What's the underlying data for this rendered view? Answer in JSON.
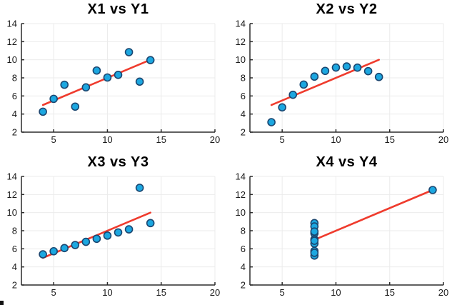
{
  "figure": {
    "background": "#ffffff",
    "rows": 2,
    "cols": 2
  },
  "style": {
    "marker_fill": "#1CA7E0",
    "marker_edge": "#1A4670",
    "marker_radius": 5,
    "marker_edge_width": 1.6,
    "line_color": "#EF3B2D",
    "line_width": 2.6,
    "grid_color": "#EBEBEB",
    "axis_color": "#2B2B2B",
    "axis_width": 1.5,
    "tick_length": 4,
    "tick_label_color": "#1a1a1a",
    "title_color": "#000000"
  },
  "chart_data": [
    {
      "type": "scatter",
      "title": "X1 vs Y1",
      "x": [
        10,
        8,
        13,
        9,
        11,
        14,
        6,
        4,
        12,
        7,
        5
      ],
      "y": [
        8.04,
        6.95,
        7.58,
        8.81,
        8.33,
        9.96,
        7.24,
        4.26,
        10.84,
        4.82,
        5.68
      ],
      "xlim": [
        2,
        20
      ],
      "ylim": [
        2,
        14
      ],
      "xticks": [
        5,
        10,
        15,
        20
      ],
      "yticks": [
        2,
        4,
        6,
        8,
        10,
        12,
        14
      ],
      "grid": true,
      "legend": null,
      "fit_line": {
        "x1": 4,
        "y1": 5,
        "x2": 14,
        "y2": 10
      }
    },
    {
      "type": "scatter",
      "title": "X2 vs Y2",
      "x": [
        10,
        8,
        13,
        9,
        11,
        14,
        6,
        4,
        12,
        7,
        5
      ],
      "y": [
        9.14,
        8.14,
        8.74,
        8.77,
        9.26,
        8.1,
        6.13,
        3.1,
        9.13,
        7.26,
        4.74
      ],
      "xlim": [
        2,
        20
      ],
      "ylim": [
        2,
        14
      ],
      "xticks": [
        5,
        10,
        15,
        20
      ],
      "yticks": [
        2,
        4,
        6,
        8,
        10,
        12,
        14
      ],
      "grid": true,
      "legend": null,
      "fit_line": {
        "x1": 4,
        "y1": 5,
        "x2": 14,
        "y2": 10
      }
    },
    {
      "type": "scatter",
      "title": "X3 vs Y3",
      "x": [
        10,
        8,
        13,
        9,
        11,
        14,
        6,
        4,
        12,
        7,
        5
      ],
      "y": [
        7.46,
        6.77,
        12.74,
        7.11,
        7.81,
        8.84,
        6.08,
        5.39,
        8.15,
        6.42,
        5.73
      ],
      "xlim": [
        2,
        20
      ],
      "ylim": [
        2,
        14
      ],
      "xticks": [
        5,
        10,
        15,
        20
      ],
      "yticks": [
        2,
        4,
        6,
        8,
        10,
        12,
        14
      ],
      "grid": true,
      "legend": null,
      "fit_line": {
        "x1": 4,
        "y1": 5,
        "x2": 14,
        "y2": 10
      }
    },
    {
      "type": "scatter",
      "title": "X4 vs Y4",
      "x": [
        8,
        8,
        8,
        8,
        8,
        8,
        8,
        19,
        8,
        8,
        8
      ],
      "y": [
        6.58,
        5.76,
        7.71,
        8.84,
        8.47,
        7.04,
        5.25,
        12.5,
        5.56,
        7.91,
        6.89
      ],
      "xlim": [
        2,
        20
      ],
      "ylim": [
        2,
        14
      ],
      "xticks": [
        5,
        10,
        15,
        20
      ],
      "yticks": [
        2,
        4,
        6,
        8,
        10,
        12,
        14
      ],
      "grid": true,
      "legend": null,
      "fit_line": {
        "x1": 8,
        "y1": 7,
        "x2": 19,
        "y2": 12.5
      }
    }
  ]
}
